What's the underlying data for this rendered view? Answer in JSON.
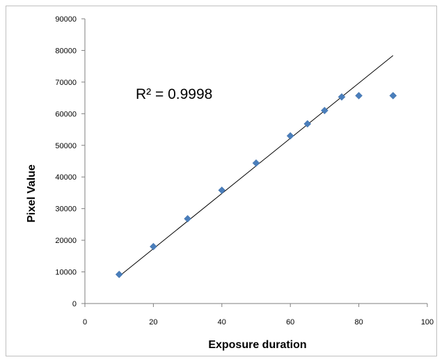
{
  "chart_data": {
    "type": "scatter",
    "xlabel": "Exposure duration",
    "ylabel": "Pixel  Value",
    "xlim": [
      0,
      100
    ],
    "ylim": [
      0,
      90000
    ],
    "x_ticks": [
      0,
      20,
      40,
      60,
      80,
      100
    ],
    "y_ticks": [
      0,
      10000,
      20000,
      30000,
      40000,
      50000,
      60000,
      70000,
      80000,
      90000
    ],
    "grid": false,
    "legend": "none",
    "marker": "diamond",
    "series": [
      {
        "x": [
          10,
          20,
          30,
          40,
          50,
          60,
          65,
          70,
          75,
          80,
          90
        ],
        "y": [
          9200,
          18000,
          26800,
          35800,
          44400,
          53000,
          56800,
          61000,
          65300,
          65700,
          65700
        ]
      }
    ],
    "trendline": {
      "type": "linear",
      "x": [
        10,
        90
      ],
      "y": [
        8600,
        78400
      ]
    },
    "annotation": "R² = 0.9998",
    "colors": {
      "marker": "#4a7ebb",
      "trendline": "#000000",
      "axis": "#7f7f7f"
    }
  }
}
